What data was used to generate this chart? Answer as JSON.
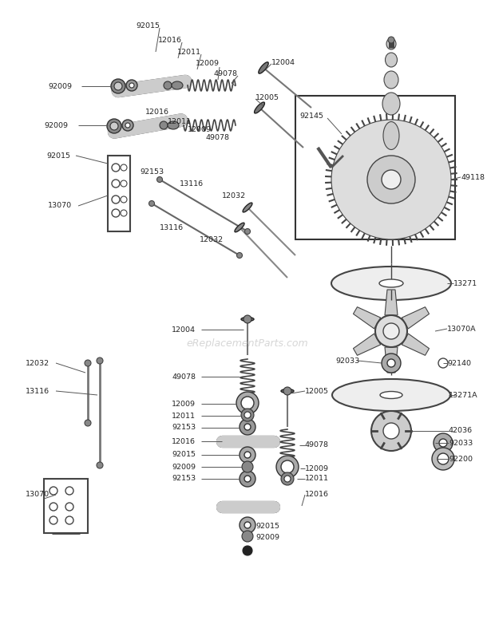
{
  "bg_color": "#ffffff",
  "fig_width": 6.2,
  "fig_height": 7.97,
  "dpi": 100,
  "watermark": "eReplacementParts.com",
  "watermark_color": "#bbbbbb",
  "label_color": "#222222",
  "label_fontsize": 6.8,
  "line_color": "#333333",
  "part_color": "#111111"
}
